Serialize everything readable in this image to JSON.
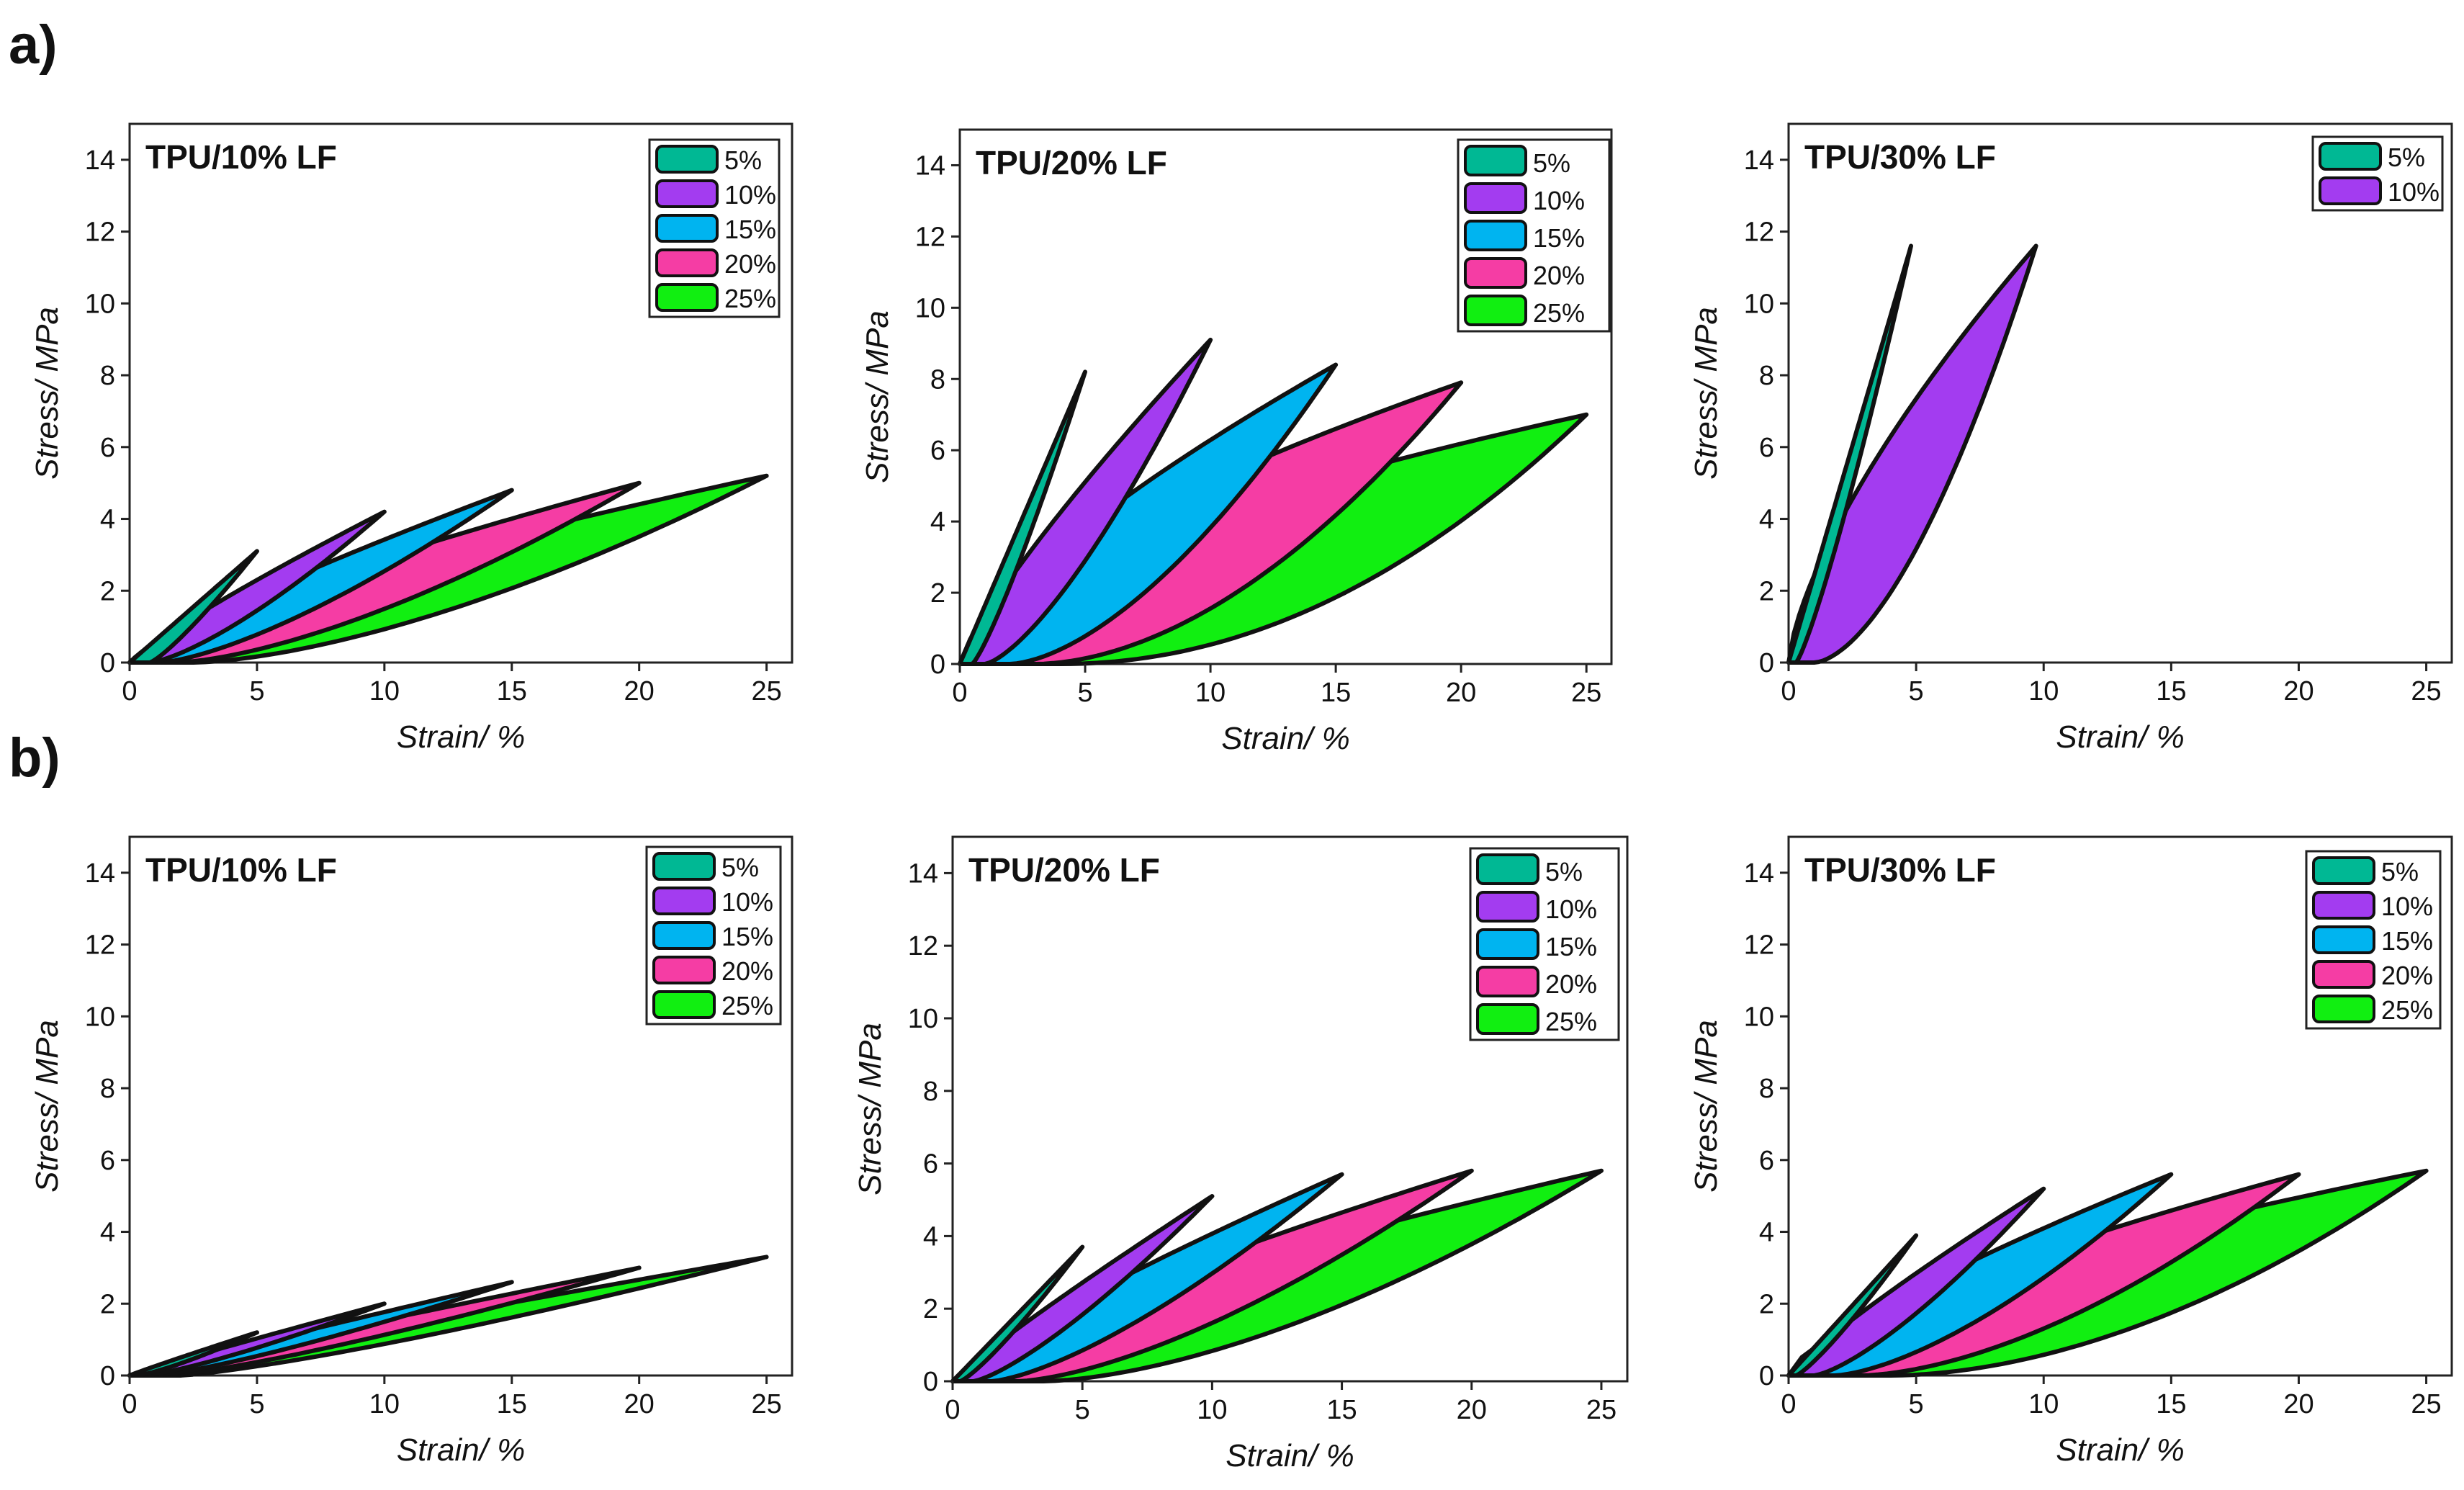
{
  "panel_labels": {
    "a": "a)",
    "b": "b)"
  },
  "chart_data": [
    {
      "type": "area",
      "row": "a",
      "title": "TPU/10% LF",
      "xlabel": "Strain/ %",
      "ylabel": "Stress/ MPa",
      "xlim": [
        0,
        26
      ],
      "ylim": [
        0,
        15
      ],
      "xticks": [
        "0",
        "5",
        "10",
        "15",
        "20",
        "25"
      ],
      "yticks": [
        "0",
        "2",
        "4",
        "6",
        "8",
        "10",
        "12",
        "14"
      ],
      "legend": [
        "5%",
        "10%",
        "15%",
        "20%",
        "25%"
      ],
      "series": [
        {
          "name": "5%",
          "strain_max": 5,
          "stress_max": 3.1,
          "residual": 0.8,
          "curvature": 1.0
        },
        {
          "name": "10%",
          "strain_max": 10,
          "stress_max": 4.2,
          "residual": 0.8,
          "curvature": 1.15
        },
        {
          "name": "15%",
          "strain_max": 15,
          "stress_max": 4.8,
          "residual": 1.2,
          "curvature": 1.2
        },
        {
          "name": "20%",
          "strain_max": 20,
          "stress_max": 5.0,
          "residual": 1.8,
          "curvature": 1.3
        },
        {
          "name": "25%",
          "strain_max": 25,
          "stress_max": 5.2,
          "residual": 2.5,
          "curvature": 1.35
        }
      ]
    },
    {
      "type": "area",
      "row": "a",
      "title": "TPU/20% LF",
      "xlabel": "Strain/ %",
      "ylabel": "Stress/ MPa",
      "xlim": [
        0,
        26
      ],
      "ylim": [
        0,
        15
      ],
      "xticks": [
        "0",
        "5",
        "10",
        "15",
        "20",
        "25"
      ],
      "yticks": [
        "0",
        "2",
        "4",
        "6",
        "8",
        "10",
        "12",
        "14"
      ],
      "legend": [
        "5%",
        "10%",
        "15%",
        "20%",
        "25%"
      ],
      "series": [
        {
          "name": "5%",
          "strain_max": 5,
          "stress_max": 8.2,
          "residual": 0.5,
          "curvature": 1.0
        },
        {
          "name": "10%",
          "strain_max": 10,
          "stress_max": 9.1,
          "residual": 1.0,
          "curvature": 1.2
        },
        {
          "name": "15%",
          "strain_max": 15,
          "stress_max": 8.4,
          "residual": 2.0,
          "curvature": 1.4
        },
        {
          "name": "20%",
          "strain_max": 20,
          "stress_max": 7.9,
          "residual": 3.0,
          "curvature": 1.6
        },
        {
          "name": "25%",
          "strain_max": 25,
          "stress_max": 7.0,
          "residual": 4.0,
          "curvature": 1.8
        }
      ]
    },
    {
      "type": "area",
      "row": "a",
      "title": "TPU/30% LF",
      "xlabel": "Strain/ %",
      "ylabel": "Stress/ MPa",
      "xlim": [
        0,
        26
      ],
      "ylim": [
        0,
        15
      ],
      "xticks": [
        "0",
        "5",
        "10",
        "15",
        "20",
        "25"
      ],
      "yticks": [
        "0",
        "2",
        "4",
        "6",
        "8",
        "10",
        "12",
        "14"
      ],
      "legend": [
        "5%",
        "10%"
      ],
      "series": [
        {
          "name": "5%",
          "strain_max": 4.8,
          "stress_max": 11.6,
          "residual": 0.3,
          "curvature": 1.0
        },
        {
          "name": "10%",
          "strain_max": 9.7,
          "stress_max": 11.6,
          "residual": 1.0,
          "curvature": 1.45
        }
      ]
    },
    {
      "type": "area",
      "row": "b",
      "title": "TPU/10% LF",
      "xlabel": "Strain/ %",
      "ylabel": "Stress/ MPa",
      "xlim": [
        0,
        26
      ],
      "ylim": [
        0,
        15
      ],
      "xticks": [
        "0",
        "5",
        "10",
        "15",
        "20",
        "25"
      ],
      "yticks": [
        "0",
        "2",
        "4",
        "6",
        "8",
        "10",
        "12",
        "14"
      ],
      "legend": [
        "5%",
        "10%",
        "15%",
        "20%",
        "25%"
      ],
      "series": [
        {
          "name": "5%",
          "strain_max": 5,
          "stress_max": 1.2,
          "residual": 0.3,
          "curvature": 1.05
        },
        {
          "name": "10%",
          "strain_max": 10,
          "stress_max": 2.0,
          "residual": 0.6,
          "curvature": 1.05
        },
        {
          "name": "15%",
          "strain_max": 15,
          "stress_max": 2.6,
          "residual": 1.0,
          "curvature": 1.05
        },
        {
          "name": "20%",
          "strain_max": 20,
          "stress_max": 3.0,
          "residual": 1.5,
          "curvature": 1.05
        },
        {
          "name": "25%",
          "strain_max": 25,
          "stress_max": 3.3,
          "residual": 2.0,
          "curvature": 1.05
        }
      ]
    },
    {
      "type": "area",
      "row": "b",
      "title": "TPU/20% LF",
      "xlabel": "Strain/ %",
      "ylabel": "Stress/ MPa",
      "xlim": [
        0,
        26
      ],
      "ylim": [
        0,
        15
      ],
      "xticks": [
        "0",
        "5",
        "10",
        "15",
        "20",
        "25"
      ],
      "yticks": [
        "0",
        "2",
        "4",
        "6",
        "8",
        "10",
        "12",
        "14"
      ],
      "legend": [
        "5%",
        "10%",
        "15%",
        "20%",
        "25%"
      ],
      "series": [
        {
          "name": "5%",
          "strain_max": 5,
          "stress_max": 3.7,
          "residual": 0.3,
          "curvature": 1.0
        },
        {
          "name": "10%",
          "strain_max": 10,
          "stress_max": 5.1,
          "residual": 0.8,
          "curvature": 1.1
        },
        {
          "name": "15%",
          "strain_max": 15,
          "stress_max": 5.7,
          "residual": 1.5,
          "curvature": 1.2
        },
        {
          "name": "20%",
          "strain_max": 20,
          "stress_max": 5.8,
          "residual": 2.5,
          "curvature": 1.3
        },
        {
          "name": "25%",
          "strain_max": 25,
          "stress_max": 5.8,
          "residual": 3.5,
          "curvature": 1.4
        }
      ]
    },
    {
      "type": "area",
      "row": "b",
      "title": "TPU/30% LF",
      "xlabel": "Strain/ %",
      "ylabel": "Stress/ MPa",
      "xlim": [
        0,
        26
      ],
      "ylim": [
        0,
        15
      ],
      "xticks": [
        "0",
        "5",
        "10",
        "15",
        "20",
        "25"
      ],
      "yticks": [
        "0",
        "2",
        "4",
        "6",
        "8",
        "10",
        "12",
        "14"
      ],
      "legend": [
        "5%",
        "10%",
        "15%",
        "20%",
        "25%"
      ],
      "series": [
        {
          "name": "5%",
          "strain_max": 5,
          "stress_max": 3.9,
          "residual": 0.3,
          "curvature": 1.0
        },
        {
          "name": "10%",
          "strain_max": 10,
          "stress_max": 5.2,
          "residual": 1.0,
          "curvature": 1.15
        },
        {
          "name": "15%",
          "strain_max": 15,
          "stress_max": 5.6,
          "residual": 1.8,
          "curvature": 1.3
        },
        {
          "name": "20%",
          "strain_max": 20,
          "stress_max": 5.6,
          "residual": 2.8,
          "curvature": 1.45
        },
        {
          "name": "25%",
          "strain_max": 25,
          "stress_max": 5.7,
          "residual": 4.0,
          "curvature": 1.6
        }
      ]
    }
  ],
  "colors": {
    "5%": "#00b894",
    "10%": "#a33cf0",
    "15%": "#00b4f0",
    "20%": "#f53da4",
    "25%": "#11ef11",
    "outline": "#111111"
  }
}
